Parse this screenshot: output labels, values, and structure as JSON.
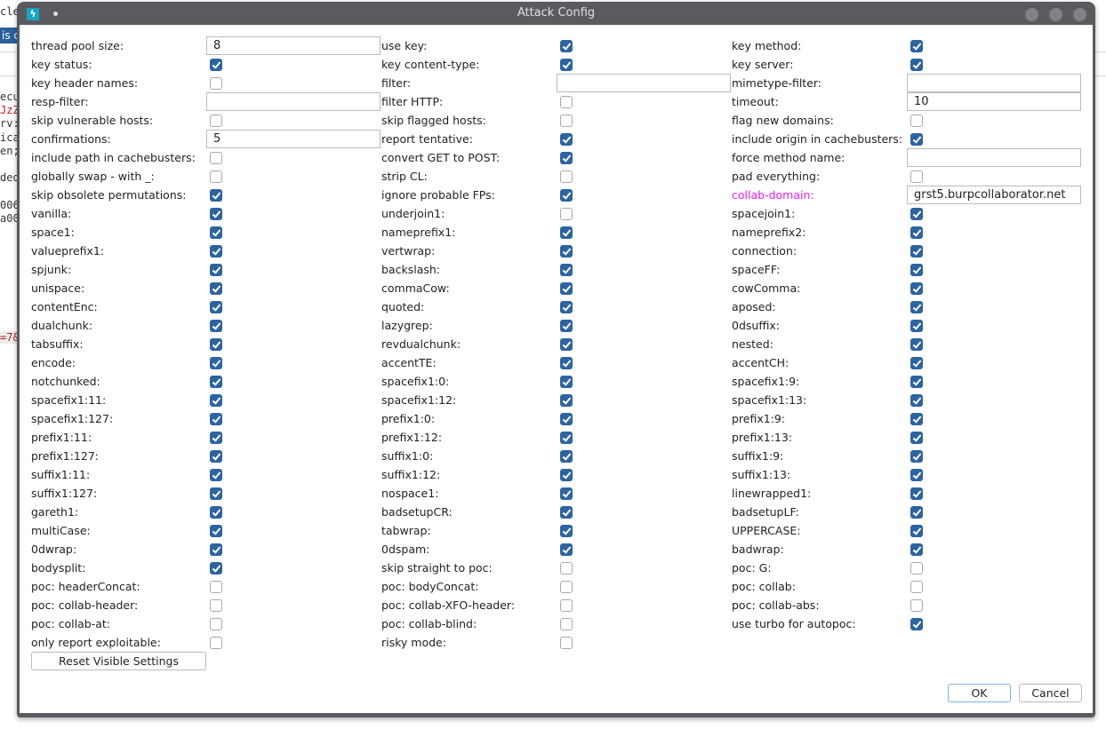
{
  "background": {
    "fragments": [
      "cle",
      "is c",
      "ecu",
      "JzZ",
      "rv:",
      "ica",
      "en;",
      "ded",
      "006",
      "a00",
      "=7&"
    ]
  },
  "dialog": {
    "title": "Attack Config",
    "colors": {
      "checkbox": "#2c64a0",
      "highlight_label": "#e81ee8",
      "frame": "#5a5b60"
    },
    "columns": [
      [
        {
          "label": "thread pool size:",
          "type": "input",
          "value": "8"
        },
        {
          "label": "key status:",
          "type": "checkbox",
          "checked": true
        },
        {
          "label": "key header names:",
          "type": "checkbox",
          "checked": false
        },
        {
          "label": "resp-filter:",
          "type": "input",
          "value": ""
        },
        {
          "label": "skip vulnerable hosts:",
          "type": "checkbox",
          "checked": false
        },
        {
          "label": "confirmations:",
          "type": "input",
          "value": "5"
        },
        {
          "label": "include path in cachebusters:",
          "type": "checkbox",
          "checked": false
        },
        {
          "label": "globally swap - with _:",
          "type": "checkbox",
          "checked": false
        },
        {
          "label": "skip obsolete permutations:",
          "type": "checkbox",
          "checked": true
        },
        {
          "label": "vanilla:",
          "type": "checkbox",
          "checked": true
        },
        {
          "label": "space1:",
          "type": "checkbox",
          "checked": true
        },
        {
          "label": "valueprefix1:",
          "type": "checkbox",
          "checked": true
        },
        {
          "label": "spjunk:",
          "type": "checkbox",
          "checked": true
        },
        {
          "label": "unispace:",
          "type": "checkbox",
          "checked": true
        },
        {
          "label": "contentEnc:",
          "type": "checkbox",
          "checked": true
        },
        {
          "label": "dualchunk:",
          "type": "checkbox",
          "checked": true
        },
        {
          "label": "tabsuffix:",
          "type": "checkbox",
          "checked": true
        },
        {
          "label": "encode:",
          "type": "checkbox",
          "checked": true
        },
        {
          "label": "notchunked:",
          "type": "checkbox",
          "checked": true
        },
        {
          "label": "spacefix1:11:",
          "type": "checkbox",
          "checked": true
        },
        {
          "label": "spacefix1:127:",
          "type": "checkbox",
          "checked": true
        },
        {
          "label": "prefix1:11:",
          "type": "checkbox",
          "checked": true
        },
        {
          "label": "prefix1:127:",
          "type": "checkbox",
          "checked": true
        },
        {
          "label": "suffix1:11:",
          "type": "checkbox",
          "checked": true
        },
        {
          "label": "suffix1:127:",
          "type": "checkbox",
          "checked": true
        },
        {
          "label": "gareth1:",
          "type": "checkbox",
          "checked": true
        },
        {
          "label": "multiCase:",
          "type": "checkbox",
          "checked": true
        },
        {
          "label": "0dwrap:",
          "type": "checkbox",
          "checked": true
        },
        {
          "label": "bodysplit:",
          "type": "checkbox",
          "checked": true
        },
        {
          "label": "poc: headerConcat:",
          "type": "checkbox",
          "checked": false
        },
        {
          "label": "poc: collab-header:",
          "type": "checkbox",
          "checked": false
        },
        {
          "label": "poc: collab-at:",
          "type": "checkbox",
          "checked": false
        },
        {
          "label": "only report exploitable:",
          "type": "checkbox",
          "checked": false
        }
      ],
      [
        {
          "label": "use key:",
          "type": "checkbox",
          "checked": true
        },
        {
          "label": "key content-type:",
          "type": "checkbox",
          "checked": true
        },
        {
          "label": "filter:",
          "type": "input",
          "value": ""
        },
        {
          "label": "filter HTTP:",
          "type": "checkbox",
          "checked": false
        },
        {
          "label": "skip flagged hosts:",
          "type": "checkbox",
          "checked": false
        },
        {
          "label": "report tentative:",
          "type": "checkbox",
          "checked": true
        },
        {
          "label": "convert GET to POST:",
          "type": "checkbox",
          "checked": true
        },
        {
          "label": "strip CL:",
          "type": "checkbox",
          "checked": false
        },
        {
          "label": "ignore probable FPs:",
          "type": "checkbox",
          "checked": true
        },
        {
          "label": "underjoin1:",
          "type": "checkbox",
          "checked": false
        },
        {
          "label": "nameprefix1:",
          "type": "checkbox",
          "checked": true
        },
        {
          "label": "vertwrap:",
          "type": "checkbox",
          "checked": true
        },
        {
          "label": "backslash:",
          "type": "checkbox",
          "checked": true
        },
        {
          "label": "commaCow:",
          "type": "checkbox",
          "checked": true
        },
        {
          "label": "quoted:",
          "type": "checkbox",
          "checked": true
        },
        {
          "label": "lazygrep:",
          "type": "checkbox",
          "checked": true
        },
        {
          "label": "revdualchunk:",
          "type": "checkbox",
          "checked": true
        },
        {
          "label": "accentTE:",
          "type": "checkbox",
          "checked": true
        },
        {
          "label": "spacefix1:0:",
          "type": "checkbox",
          "checked": true
        },
        {
          "label": "spacefix1:12:",
          "type": "checkbox",
          "checked": true
        },
        {
          "label": "prefix1:0:",
          "type": "checkbox",
          "checked": true
        },
        {
          "label": "prefix1:12:",
          "type": "checkbox",
          "checked": true
        },
        {
          "label": "suffix1:0:",
          "type": "checkbox",
          "checked": true
        },
        {
          "label": "suffix1:12:",
          "type": "checkbox",
          "checked": true
        },
        {
          "label": "nospace1:",
          "type": "checkbox",
          "checked": true
        },
        {
          "label": "badsetupCR:",
          "type": "checkbox",
          "checked": true
        },
        {
          "label": "tabwrap:",
          "type": "checkbox",
          "checked": true
        },
        {
          "label": "0dspam:",
          "type": "checkbox",
          "checked": true
        },
        {
          "label": "skip straight to poc:",
          "type": "checkbox",
          "checked": false
        },
        {
          "label": "poc: bodyConcat:",
          "type": "checkbox",
          "checked": false
        },
        {
          "label": "poc: collab-XFO-header:",
          "type": "checkbox",
          "checked": false
        },
        {
          "label": "poc: collab-blind:",
          "type": "checkbox",
          "checked": false
        },
        {
          "label": "risky mode:",
          "type": "checkbox",
          "checked": false
        }
      ],
      [
        {
          "label": "key method:",
          "type": "checkbox",
          "checked": true
        },
        {
          "label": "key server:",
          "type": "checkbox",
          "checked": true
        },
        {
          "label": "mimetype-filter:",
          "type": "input",
          "value": ""
        },
        {
          "label": "timeout:",
          "type": "input",
          "value": "10"
        },
        {
          "label": "flag new domains:",
          "type": "checkbox",
          "checked": false
        },
        {
          "label": "include origin in cachebusters:",
          "type": "checkbox",
          "checked": true
        },
        {
          "label": "force method name:",
          "type": "input",
          "value": ""
        },
        {
          "label": "pad everything:",
          "type": "checkbox",
          "checked": false
        },
        {
          "label": "collab-domain:",
          "type": "input",
          "value": "grst5.burpcollaborator.net",
          "highlight": true
        },
        {
          "label": "spacejoin1:",
          "type": "checkbox",
          "checked": true
        },
        {
          "label": "nameprefix2:",
          "type": "checkbox",
          "checked": true
        },
        {
          "label": "connection:",
          "type": "checkbox",
          "checked": true
        },
        {
          "label": "spaceFF:",
          "type": "checkbox",
          "checked": true
        },
        {
          "label": "cowComma:",
          "type": "checkbox",
          "checked": true
        },
        {
          "label": "aposed:",
          "type": "checkbox",
          "checked": true
        },
        {
          "label": "0dsuffix:",
          "type": "checkbox",
          "checked": true
        },
        {
          "label": "nested:",
          "type": "checkbox",
          "checked": true
        },
        {
          "label": "accentCH:",
          "type": "checkbox",
          "checked": true
        },
        {
          "label": "spacefix1:9:",
          "type": "checkbox",
          "checked": true
        },
        {
          "label": "spacefix1:13:",
          "type": "checkbox",
          "checked": true
        },
        {
          "label": "prefix1:9:",
          "type": "checkbox",
          "checked": true
        },
        {
          "label": "prefix1:13:",
          "type": "checkbox",
          "checked": true
        },
        {
          "label": "suffix1:9:",
          "type": "checkbox",
          "checked": true
        },
        {
          "label": "suffix1:13:",
          "type": "checkbox",
          "checked": true
        },
        {
          "label": "linewrapped1:",
          "type": "checkbox",
          "checked": true
        },
        {
          "label": "badsetupLF:",
          "type": "checkbox",
          "checked": true
        },
        {
          "label": "UPPERCASE:",
          "type": "checkbox",
          "checked": true
        },
        {
          "label": "badwrap:",
          "type": "checkbox",
          "checked": true
        },
        {
          "label": "poc: G:",
          "type": "checkbox",
          "checked": false
        },
        {
          "label": "poc: collab:",
          "type": "checkbox",
          "checked": false
        },
        {
          "label": "poc: collab-abs:",
          "type": "checkbox",
          "checked": false
        },
        {
          "label": "use turbo for autopoc:",
          "type": "checkbox",
          "checked": true
        }
      ]
    ],
    "reset_label": "Reset Visible Settings",
    "ok_label": "OK",
    "cancel_label": "Cancel"
  }
}
